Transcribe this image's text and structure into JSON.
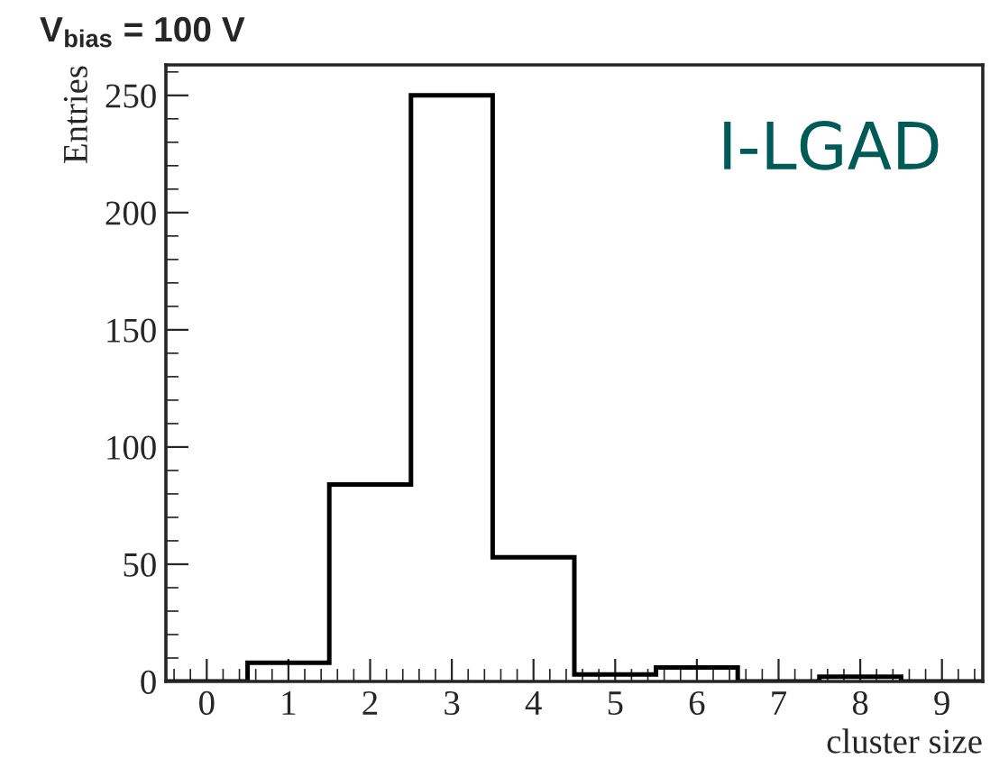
{
  "chart_data": {
    "type": "histogram",
    "title": "V$_{bias}$ = 100 V",
    "xlabel": "cluster size",
    "ylabel": "Entries",
    "bins": [
      -0.5,
      0.5,
      1.5,
      2.5,
      3.5,
      4.5,
      5.5,
      6.5,
      7.5,
      8.5,
      9.5
    ],
    "values": [
      0,
      8,
      84,
      250,
      53,
      3,
      6,
      0,
      2,
      0
    ],
    "color": "#000000",
    "xlim": [
      -0.5,
      9.5
    ],
    "xticks": [
      0,
      1,
      2,
      3,
      4,
      5,
      6,
      7,
      8,
      9
    ],
    "ylim": [
      0,
      263
    ],
    "yticks": [
      0,
      50,
      100,
      150,
      200,
      250
    ],
    "annotations": [
      "I-LGAD"
    ],
    "grid": false
  }
}
